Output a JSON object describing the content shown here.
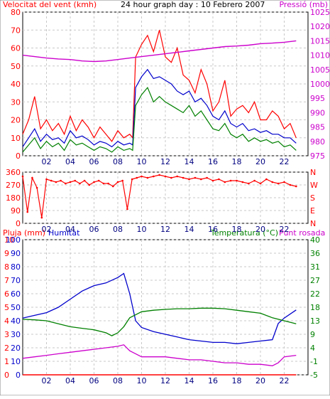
{
  "header": {
    "wind_label": "Velocitat del vent (kmh)",
    "title": "24 hour graph day : 10 Febrero 2007",
    "pressure_label": "Pressió (mb)"
  },
  "colors": {
    "wind": "#ff0000",
    "wind_avg": "#0000cc",
    "wind_min": "#008000",
    "pressure": "#cc00cc",
    "direction": "#ff0000",
    "humidity": "#0000cc",
    "temperature": "#008000",
    "dewpoint": "#cc00cc",
    "rain": "#ff0000"
  },
  "chart_data": [
    {
      "type": "line",
      "panel": "wind-pressure",
      "x_ticks": [
        "02",
        "04",
        "06",
        "08",
        "10",
        "12",
        "14",
        "16",
        "18",
        "20",
        "22"
      ],
      "xlim": [
        0,
        24
      ],
      "ylim_left": [
        0,
        80
      ],
      "yticks_left": [
        "0",
        "10",
        "20",
        "30",
        "40",
        "50",
        "60",
        "70",
        "80"
      ],
      "ylim_right": [
        975,
        1025
      ],
      "yticks_right": [
        "975",
        "980",
        "985",
        "990",
        "995",
        "1000",
        "1005",
        "1010",
        "1015",
        "1020",
        "1025"
      ],
      "ylabel_left": "Velocitat del vent (kmh)",
      "ylabel_right": "Pressió (mb)",
      "grid": true,
      "series": [
        {
          "axis": "left",
          "x": [
            0,
            0.5,
            1,
            1.5,
            2,
            2.5,
            3,
            3.5,
            4,
            4.5,
            5,
            5.5,
            6,
            6.5,
            7,
            7.5,
            8,
            8.5,
            9,
            9.25,
            9.5,
            10,
            10.5,
            11,
            11.5,
            12,
            12.5,
            13,
            13.5,
            14,
            14.5,
            15,
            15.5,
            16,
            16.5,
            17,
            17.5,
            18,
            18.5,
            19,
            19.5,
            20,
            20.5,
            21,
            21.5,
            22,
            22.5,
            23
          ],
          "values": [
            12,
            20,
            33,
            15,
            20,
            14,
            18,
            12,
            22,
            14,
            20,
            16,
            10,
            16,
            12,
            8,
            14,
            10,
            12,
            10,
            55,
            62,
            67,
            58,
            70,
            55,
            52,
            60,
            45,
            42,
            35,
            48,
            40,
            25,
            30,
            42,
            22,
            26,
            28,
            24,
            30,
            20,
            20,
            25,
            22,
            15,
            18,
            10
          ]
        },
        {
          "axis": "left",
          "x": [
            0,
            0.5,
            1,
            1.5,
            2,
            2.5,
            3,
            3.5,
            4,
            4.5,
            5,
            5.5,
            6,
            6.5,
            7,
            7.5,
            8,
            8.5,
            9,
            9.25,
            9.5,
            10,
            10.5,
            11,
            11.5,
            12,
            12.5,
            13,
            13.5,
            14,
            14.5,
            15,
            15.5,
            16,
            16.5,
            17,
            17.5,
            18,
            18.5,
            19,
            19.5,
            20,
            20.5,
            21,
            21.5,
            22,
            22.5,
            23
          ],
          "values": [
            5,
            10,
            15,
            8,
            12,
            9,
            10,
            7,
            14,
            10,
            11,
            9,
            6,
            8,
            7,
            5,
            8,
            6,
            7,
            6,
            38,
            44,
            48,
            43,
            44,
            42,
            40,
            36,
            34,
            36,
            30,
            32,
            28,
            22,
            20,
            25,
            18,
            16,
            18,
            14,
            15,
            13,
            14,
            12,
            12,
            10,
            10,
            7
          ]
        },
        {
          "axis": "left",
          "x": [
            0,
            0.5,
            1,
            1.5,
            2,
            2.5,
            3,
            3.5,
            4,
            4.5,
            5,
            5.5,
            6,
            6.5,
            7,
            7.5,
            8,
            8.5,
            9,
            9.25,
            9.5,
            10,
            10.5,
            11,
            11.5,
            12,
            12.5,
            13,
            13.5,
            14,
            14.5,
            15,
            15.5,
            16,
            16.5,
            17,
            17.5,
            18,
            18.5,
            19,
            19.5,
            20,
            20.5,
            21,
            21.5,
            22,
            22.5,
            23
          ],
          "values": [
            2,
            6,
            10,
            4,
            8,
            5,
            7,
            3,
            9,
            6,
            7,
            5,
            3,
            5,
            4,
            2,
            5,
            3,
            4,
            3,
            28,
            34,
            38,
            30,
            33,
            30,
            28,
            26,
            24,
            28,
            22,
            25,
            20,
            15,
            14,
            18,
            12,
            10,
            12,
            8,
            10,
            8,
            9,
            7,
            8,
            5,
            6,
            3
          ]
        },
        {
          "axis": "right",
          "x": [
            0,
            1,
            2,
            3,
            4,
            5,
            6,
            7,
            8,
            9,
            10,
            11,
            12,
            13,
            14,
            15,
            16,
            17,
            18,
            19,
            20,
            21,
            22,
            23
          ],
          "values": [
            1010,
            1009.5,
            1009,
            1008.7,
            1008.5,
            1008,
            1007.8,
            1008,
            1008.5,
            1009,
            1009.5,
            1010,
            1010.5,
            1011,
            1011.5,
            1012,
            1012.5,
            1013,
            1013.2,
            1013.5,
            1014,
            1014.2,
            1014.5,
            1015
          ]
        }
      ]
    },
    {
      "type": "scatter",
      "panel": "wind-direction",
      "x_ticks": [
        "02",
        "04",
        "06",
        "08",
        "10",
        "12",
        "14",
        "16",
        "18",
        "20",
        "22"
      ],
      "xlim": [
        0,
        24
      ],
      "ylim_left": [
        0,
        360
      ],
      "yticks_left": [
        "0",
        "90",
        "180",
        "270",
        "360"
      ],
      "yticks_right": [
        "N",
        "E",
        "S",
        "W",
        "N"
      ],
      "grid": true,
      "series": [
        {
          "x": [
            0,
            0.4,
            0.8,
            1.2,
            1.6,
            2,
            2.4,
            2.8,
            3.2,
            3.6,
            4,
            4.4,
            4.8,
            5.2,
            5.6,
            6,
            6.4,
            6.8,
            7.2,
            7.6,
            8,
            8.4,
            8.8,
            9.2,
            9.6,
            10,
            10.5,
            11,
            11.5,
            12,
            12.5,
            13,
            13.5,
            14,
            14.5,
            15,
            15.5,
            16,
            16.5,
            17,
            17.5,
            18,
            18.5,
            19,
            19.5,
            20,
            20.5,
            21,
            21.5,
            22,
            22.5,
            23
          ],
          "values": [
            330,
            80,
            320,
            250,
            40,
            310,
            300,
            290,
            300,
            280,
            290,
            300,
            280,
            300,
            270,
            290,
            300,
            280,
            280,
            260,
            290,
            300,
            100,
            310,
            320,
            330,
            320,
            330,
            340,
            330,
            320,
            330,
            320,
            310,
            320,
            310,
            320,
            300,
            310,
            290,
            300,
            300,
            290,
            280,
            300,
            280,
            310,
            290,
            280,
            290,
            270,
            260
          ]
        }
      ]
    },
    {
      "type": "line",
      "panel": "rain-humidity-temperature",
      "x_ticks": [
        "02",
        "04",
        "06",
        "08",
        "10",
        "12",
        "14",
        "16",
        "18",
        "20",
        "22"
      ],
      "xlim": [
        0,
        24
      ],
      "ylim_rain": [
        0,
        10
      ],
      "yticks_rain": [
        "0",
        "1",
        "2",
        "3",
        "4",
        "5",
        "6",
        "7",
        "8",
        "9",
        "10"
      ],
      "ylim_humidity": [
        0,
        100
      ],
      "yticks_humidity": [
        "0",
        "10",
        "20",
        "30",
        "40",
        "50",
        "60",
        "70",
        "80",
        "90",
        "100"
      ],
      "ylim_temperature": [
        -5,
        40
      ],
      "yticks_temperature": [
        "-5",
        "-1",
        "4",
        "9",
        "13",
        "18",
        "22",
        "27",
        "31",
        "36",
        "40"
      ],
      "ylabel_rain": "Pluja (mm)",
      "ylabel_humidity": "Humitat",
      "ylabel_temperature": "Temperatura (°C)",
      "ylabel_dewpoint": "Punt rosada",
      "grid": true,
      "series": [
        {
          "name": "Humitat",
          "axis": "humidity",
          "x": [
            0,
            1,
            2,
            3,
            4,
            5,
            6,
            7,
            8,
            8.5,
            9,
            9.5,
            10,
            11,
            12,
            13,
            14,
            15,
            16,
            17,
            18,
            19,
            20,
            21,
            21.5,
            22,
            23
          ],
          "values": [
            42,
            44,
            46,
            50,
            56,
            62,
            66,
            68,
            72,
            75,
            60,
            40,
            35,
            32,
            30,
            28,
            26,
            25,
            24,
            24,
            23,
            24,
            25,
            26,
            38,
            42,
            48
          ]
        },
        {
          "name": "Temperatura (°C)",
          "axis": "temperature",
          "x": [
            0,
            1,
            2,
            3,
            4,
            5,
            6,
            7,
            7.5,
            8,
            8.5,
            9,
            9.5,
            10,
            11,
            12,
            13,
            14,
            15,
            16,
            17,
            18,
            19,
            20,
            21,
            22,
            23
          ],
          "values": [
            13.5,
            13.3,
            13,
            12,
            11,
            10.5,
            10,
            9,
            8,
            9,
            11,
            14,
            15,
            16,
            16.5,
            16.8,
            17,
            17,
            17.2,
            17.2,
            17,
            16.5,
            16,
            15.5,
            14,
            13,
            12
          ]
        },
        {
          "name": "Punt rosada",
          "axis": "temperature",
          "x": [
            0,
            1,
            2,
            3,
            4,
            5,
            6,
            7,
            8,
            8.5,
            9,
            9.5,
            10,
            11,
            12,
            13,
            14,
            15,
            16,
            17,
            18,
            19,
            20,
            21,
            21.5,
            22,
            23
          ],
          "values": [
            0.5,
            1,
            1.5,
            2,
            2.5,
            3,
            3.5,
            4,
            4.5,
            5,
            3,
            2,
            1,
            1,
            1,
            0.5,
            0,
            0,
            -0.5,
            -1,
            -1,
            -1.5,
            -1.5,
            -2,
            -1,
            1,
            1.5
          ]
        },
        {
          "name": "Pluja (mm)",
          "axis": "rain",
          "x": [
            0,
            23
          ],
          "values": [
            0,
            0
          ]
        }
      ]
    }
  ]
}
